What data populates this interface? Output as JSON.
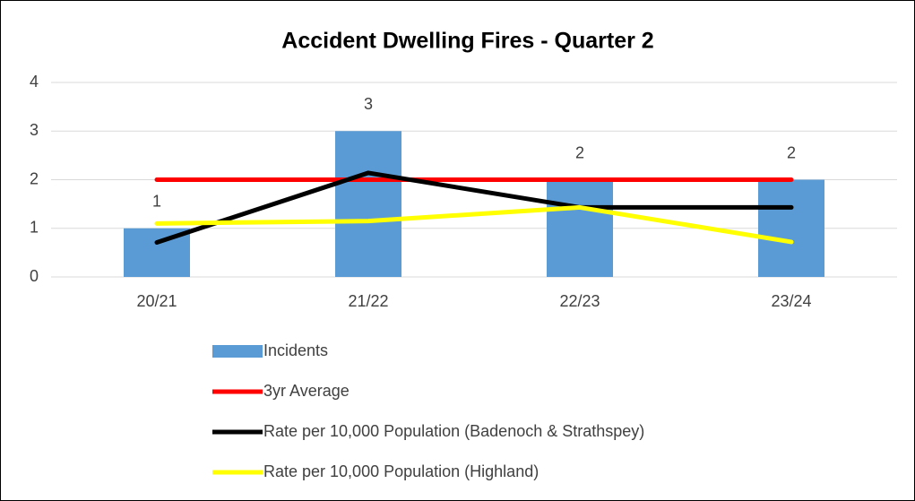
{
  "chart_data": {
    "type": "bar",
    "title": "Accident Dwelling Fires - Quarter 2",
    "categories": [
      "20/21",
      "21/22",
      "22/23",
      "23/24"
    ],
    "series": [
      {
        "name": "Incidents",
        "type": "bar",
        "color": "#5b9bd5",
        "values": [
          1,
          3,
          2,
          2
        ]
      },
      {
        "name": "3yr Average",
        "type": "line",
        "color": "#ff0000",
        "values": [
          2,
          2,
          2,
          2
        ]
      },
      {
        "name": "Rate per 10,000 Population (Badenoch & Strathspey)",
        "type": "line",
        "color": "#000000",
        "values": [
          0.71,
          2.14,
          1.43,
          1.43
        ]
      },
      {
        "name": "Rate per 10,000 Population (Highland)",
        "type": "line",
        "color": "#ffff00",
        "values": [
          1.1,
          1.15,
          1.43,
          0.72
        ]
      }
    ],
    "ylim": [
      0,
      4
    ],
    "yticks": [
      0,
      1,
      2,
      3,
      4
    ],
    "grid": true,
    "legend": "bottom"
  }
}
